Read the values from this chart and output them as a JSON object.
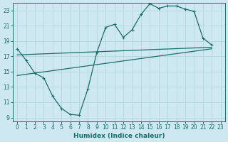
{
  "bg_color": "#cde8f0",
  "line_color": "#1a6e6a",
  "grid_color": "#b8d8e0",
  "xlabel": "Humidex (Indice chaleur)",
  "xlim": [
    -0.5,
    23.5
  ],
  "ylim": [
    8.5,
    24.0
  ],
  "xticks": [
    0,
    1,
    2,
    3,
    4,
    5,
    6,
    7,
    8,
    9,
    10,
    11,
    12,
    13,
    14,
    15,
    16,
    17,
    18,
    19,
    20,
    21,
    22,
    23
  ],
  "yticks": [
    9,
    11,
    13,
    15,
    17,
    19,
    21,
    23
  ],
  "jagged_x": [
    0,
    1,
    2,
    3,
    4,
    5,
    6,
    7,
    8,
    9,
    10,
    11,
    12,
    13,
    14,
    15,
    16,
    17,
    18,
    19,
    20,
    21,
    22
  ],
  "jagged_y": [
    18.0,
    16.5,
    14.8,
    14.2,
    11.8,
    10.2,
    9.4,
    9.3,
    12.8,
    17.5,
    20.8,
    21.2,
    19.5,
    20.5,
    22.5,
    23.9,
    23.3,
    23.6,
    23.6,
    23.2,
    22.9,
    19.4,
    18.5
  ],
  "trend1_x": [
    0,
    22
  ],
  "trend1_y": [
    17.2,
    18.2
  ],
  "trend2_x": [
    0,
    22
  ],
  "trend2_y": [
    14.5,
    18.0
  ],
  "tick_fontsize": 5.5,
  "label_fontsize": 6.5,
  "marker_size": 3.5,
  "linewidth": 0.9
}
